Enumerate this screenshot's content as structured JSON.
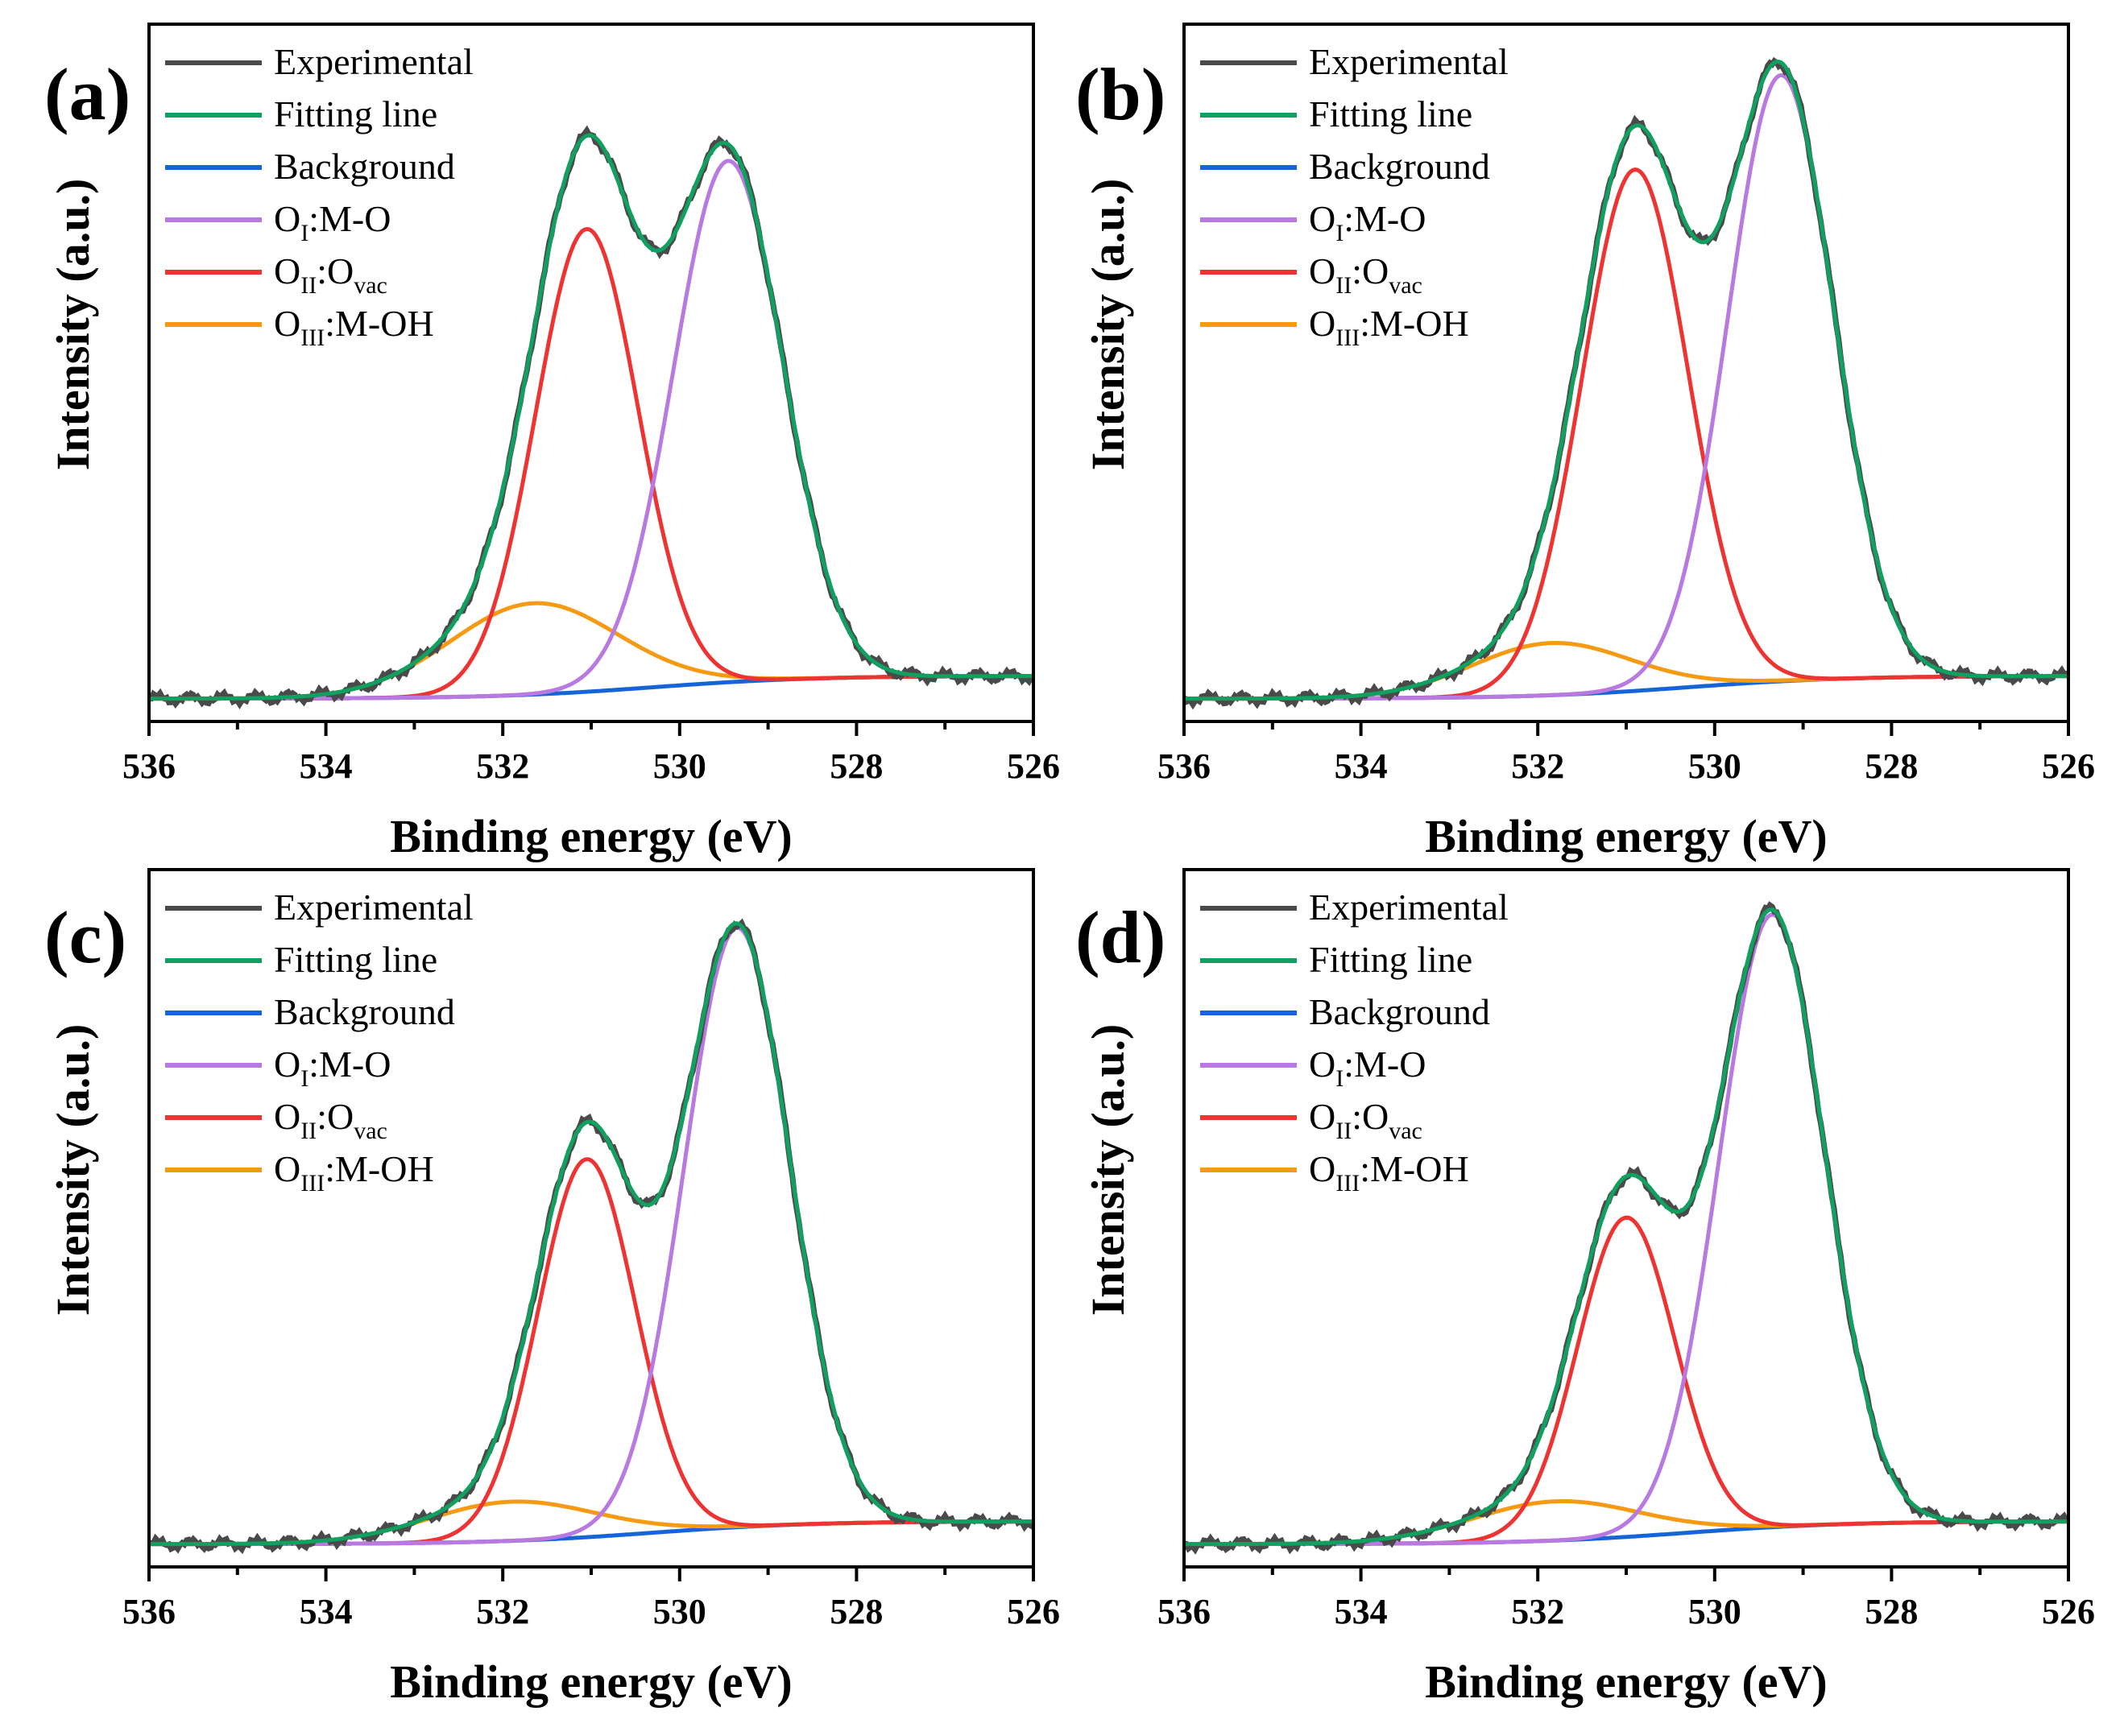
{
  "figure": {
    "description_text": null
  },
  "chart_data": [
    {
      "type": "line",
      "panel_label": "(a)",
      "xlabel": "Binding energy (eV)",
      "ylabel": "Intensity (a.u.)",
      "xlim": [
        536,
        526
      ],
      "ylim": [
        -0.07,
        1.0
      ],
      "xticks": [
        536,
        534,
        532,
        530,
        528,
        526
      ],
      "xtick_labels": [
        "536",
        "534",
        "532",
        "530",
        "528",
        "526"
      ],
      "legend_position": "top-left",
      "components": [
        {
          "name": "OI",
          "center": 529.45,
          "height": 0.8,
          "sigma": 0.62
        },
        {
          "name": "OII",
          "center": 531.05,
          "height": 0.71,
          "sigma": 0.58
        },
        {
          "name": "OIII",
          "center": 531.65,
          "height": 0.14,
          "sigma": 0.95
        }
      ],
      "background": {
        "high": 0.0,
        "low": -0.035,
        "mid": 530.3,
        "width": 0.9
      },
      "series": [
        {
          "name": "Experimental",
          "role": "experimental",
          "color": "#4a4a4a"
        },
        {
          "name": "Fitting line",
          "role": "fit",
          "color": "#10a060"
        },
        {
          "name": "Background",
          "role": "background",
          "color": "#1565d8"
        },
        {
          "name": "OI:M-O",
          "role": "comp",
          "index": 0,
          "color": "#b87ae0"
        },
        {
          "name": "OII:Ovac",
          "role": "comp",
          "index": 1,
          "color": "#ee3333"
        },
        {
          "name": "OIII:M-OH",
          "role": "comp",
          "index": 2,
          "color": "#f59a12"
        }
      ]
    },
    {
      "type": "line",
      "panel_label": "(b)",
      "xlabel": "Binding energy (eV)",
      "ylabel": "Intensity (a.u.)",
      "xlim": [
        536,
        526
      ],
      "ylim": [
        -0.07,
        1.0
      ],
      "xticks": [
        536,
        534,
        532,
        530,
        528,
        526
      ],
      "xtick_labels": [
        "536",
        "534",
        "532",
        "530",
        "528",
        "526"
      ],
      "legend_position": "top-left",
      "components": [
        {
          "name": "OI",
          "center": 529.25,
          "height": 0.93,
          "sigma": 0.6
        },
        {
          "name": "OII",
          "center": 530.9,
          "height": 0.8,
          "sigma": 0.6
        },
        {
          "name": "OIII",
          "center": 531.85,
          "height": 0.08,
          "sigma": 0.9
        }
      ],
      "background": {
        "high": 0.0,
        "low": -0.035,
        "mid": 530.3,
        "width": 0.9
      },
      "series": [
        {
          "name": "Experimental",
          "role": "experimental",
          "color": "#4a4a4a"
        },
        {
          "name": "Fitting line",
          "role": "fit",
          "color": "#10a060"
        },
        {
          "name": "Background",
          "role": "background",
          "color": "#1565d8"
        },
        {
          "name": "OI:M-O",
          "role": "comp",
          "index": 0,
          "color": "#b87ae0"
        },
        {
          "name": "OII:Ovac",
          "role": "comp",
          "index": 1,
          "color": "#ee3333"
        },
        {
          "name": "OIII:M-OH",
          "role": "comp",
          "index": 2,
          "color": "#f59a12"
        }
      ]
    },
    {
      "type": "line",
      "panel_label": "(c)",
      "xlabel": "Binding energy (eV)",
      "ylabel": "Intensity (a.u.)",
      "xlim": [
        536,
        526
      ],
      "ylim": [
        -0.07,
        1.0
      ],
      "xticks": [
        536,
        534,
        532,
        530,
        528,
        526
      ],
      "xtick_labels": [
        "536",
        "534",
        "532",
        "530",
        "528",
        "526"
      ],
      "legend_position": "top-left",
      "components": [
        {
          "name": "OI",
          "center": 529.35,
          "height": 0.92,
          "sigma": 0.6
        },
        {
          "name": "OII",
          "center": 531.05,
          "height": 0.58,
          "sigma": 0.55
        },
        {
          "name": "OIII",
          "center": 531.9,
          "height": 0.06,
          "sigma": 0.95
        }
      ],
      "background": {
        "high": 0.0,
        "low": -0.035,
        "mid": 530.3,
        "width": 0.9
      },
      "series": [
        {
          "name": "Experimental",
          "role": "experimental",
          "color": "#4a4a4a"
        },
        {
          "name": "Fitting line",
          "role": "fit",
          "color": "#10a060"
        },
        {
          "name": "Background",
          "role": "background",
          "color": "#1565d8"
        },
        {
          "name": "OI:M-O",
          "role": "comp",
          "index": 0,
          "color": "#b87ae0"
        },
        {
          "name": "OII:Ovac",
          "role": "comp",
          "index": 1,
          "color": "#ee3333"
        },
        {
          "name": "OIII:M-OH",
          "role": "comp",
          "index": 2,
          "color": "#f59a12"
        }
      ]
    },
    {
      "type": "line",
      "panel_label": "(d)",
      "xlabel": "Binding energy (eV)",
      "ylabel": "Intensity (a.u.)",
      "xlim": [
        536,
        526
      ],
      "ylim": [
        -0.07,
        1.0
      ],
      "xticks": [
        536,
        534,
        532,
        530,
        528,
        526
      ],
      "xtick_labels": [
        "536",
        "534",
        "532",
        "530",
        "528",
        "526"
      ],
      "legend_position": "top-left",
      "components": [
        {
          "name": "OI",
          "center": 529.35,
          "height": 0.94,
          "sigma": 0.6
        },
        {
          "name": "OII",
          "center": 531.0,
          "height": 0.49,
          "sigma": 0.55
        },
        {
          "name": "OIII",
          "center": 531.8,
          "height": 0.06,
          "sigma": 0.95
        }
      ],
      "background": {
        "high": 0.0,
        "low": -0.035,
        "mid": 530.3,
        "width": 0.9
      },
      "series": [
        {
          "name": "Experimental",
          "role": "experimental",
          "color": "#4a4a4a"
        },
        {
          "name": "Fitting line",
          "role": "fit",
          "color": "#10a060"
        },
        {
          "name": "Background",
          "role": "background",
          "color": "#1565d8"
        },
        {
          "name": "OI:M-O",
          "role": "comp",
          "index": 0,
          "color": "#b87ae0"
        },
        {
          "name": "OII:Ovac",
          "role": "comp",
          "index": 1,
          "color": "#ee3333"
        },
        {
          "name": "OIII:M-OH",
          "role": "comp",
          "index": 2,
          "color": "#f59a12"
        }
      ]
    }
  ],
  "legend_text": {
    "experimental": "Experimental",
    "fit": "Fitting line",
    "background": "Background",
    "comp0_main": "O",
    "comp0_sub": "I",
    "comp0_rest": ":M-O",
    "comp1_main": "O",
    "comp1_sub": "II",
    "comp1_mid": ":O",
    "comp1_sub2": "vac",
    "comp2_main": "O",
    "comp2_sub": "III",
    "comp2_rest": ":M-OH"
  }
}
